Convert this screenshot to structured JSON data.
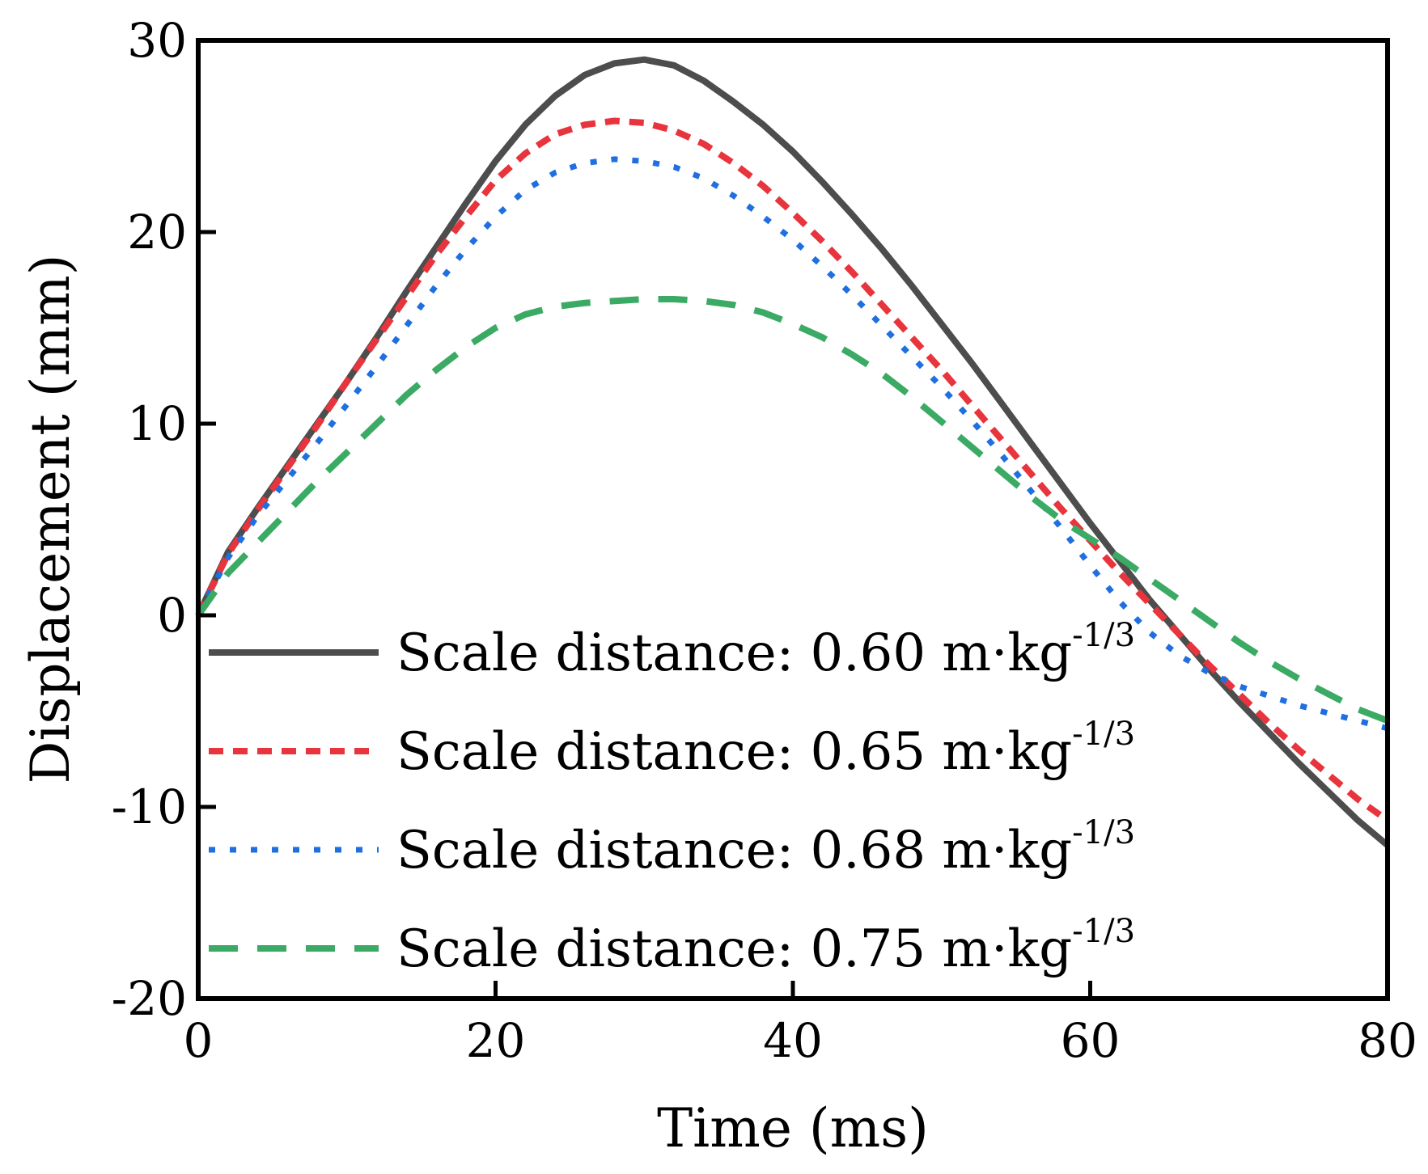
{
  "chart_data": {
    "type": "line",
    "title": "",
    "xlabel": "Time (ms)",
    "ylabel": "Displacement (mm)",
    "xlim": [
      0,
      80
    ],
    "ylim": [
      -20,
      30
    ],
    "xticks": [
      0,
      20,
      40,
      60,
      80
    ],
    "yticks": [
      -20,
      -10,
      0,
      10,
      20,
      30
    ],
    "xtick_labels": [
      "0",
      "20",
      "40",
      "60",
      "80"
    ],
    "ytick_labels": [
      "-20",
      "-10",
      "0",
      "10",
      "20",
      "30"
    ],
    "grid": false,
    "legend_position": "bottom-left",
    "series": [
      {
        "name": "Scale distance: 0.60 m·kg",
        "name_sup": "-1/3",
        "color": "#4d4d4d",
        "dash": "solid",
        "x": [
          0,
          2,
          4,
          6,
          8,
          10,
          12,
          14,
          16,
          18,
          20,
          22,
          24,
          26,
          28,
          30,
          32,
          34,
          36,
          38,
          40,
          42,
          44,
          46,
          48,
          50,
          52,
          54,
          56,
          58,
          60,
          62,
          64,
          66,
          68,
          70,
          72,
          74,
          76,
          78,
          80
        ],
        "y": [
          0,
          3.3,
          5.6,
          7.8,
          10.0,
          12.2,
          14.5,
          16.9,
          19.2,
          21.5,
          23.7,
          25.6,
          27.1,
          28.2,
          28.8,
          29.0,
          28.7,
          27.9,
          26.8,
          25.6,
          24.2,
          22.6,
          20.9,
          19.1,
          17.2,
          15.2,
          13.2,
          11.1,
          9.0,
          6.9,
          4.8,
          2.8,
          0.8,
          -1.0,
          -2.8,
          -4.5,
          -6.1,
          -7.7,
          -9.2,
          -10.7,
          -12.0
        ]
      },
      {
        "name": "Scale distance: 0.65 m·kg",
        "name_sup": "-1/3",
        "color": "#e8343c",
        "dash": "dashed-short",
        "x": [
          0,
          2,
          4,
          6,
          8,
          10,
          12,
          14,
          16,
          18,
          20,
          22,
          24,
          26,
          28,
          30,
          32,
          34,
          36,
          38,
          40,
          42,
          44,
          46,
          48,
          50,
          52,
          54,
          56,
          58,
          60,
          62,
          64,
          66,
          68,
          70,
          72,
          74,
          76,
          78,
          80
        ],
        "y": [
          0,
          3.2,
          5.5,
          7.7,
          9.9,
          12.2,
          14.4,
          16.6,
          18.8,
          20.8,
          22.7,
          24.1,
          25.1,
          25.6,
          25.8,
          25.7,
          25.3,
          24.6,
          23.6,
          22.4,
          21.0,
          19.5,
          17.9,
          16.2,
          14.5,
          12.8,
          11.0,
          9.2,
          7.4,
          5.6,
          3.9,
          2.2,
          0.6,
          -1.0,
          -2.6,
          -4.1,
          -5.6,
          -7.0,
          -8.3,
          -9.6,
          -10.7
        ]
      },
      {
        "name": "Scale distance: 0.68 m·kg",
        "name_sup": "-1/3",
        "color": "#1f6fe0",
        "dash": "dotted",
        "x": [
          0,
          2,
          4,
          6,
          8,
          10,
          12,
          14,
          16,
          18,
          20,
          22,
          24,
          26,
          28,
          30,
          32,
          34,
          36,
          38,
          40,
          42,
          44,
          46,
          48,
          50,
          52,
          54,
          56,
          58,
          60,
          62,
          64,
          66,
          68,
          70,
          72,
          74,
          76,
          78,
          80
        ],
        "y": [
          0,
          3.0,
          5.2,
          7.1,
          9.0,
          11.0,
          13.0,
          15.1,
          17.2,
          19.1,
          20.8,
          22.2,
          23.1,
          23.6,
          23.8,
          23.7,
          23.4,
          22.8,
          21.9,
          20.8,
          19.6,
          18.2,
          16.7,
          15.1,
          13.5,
          11.9,
          10.2,
          8.4,
          6.5,
          4.6,
          2.6,
          0.7,
          -0.9,
          -2.1,
          -3.0,
          -3.7,
          -4.2,
          -4.7,
          -5.1,
          -5.5,
          -5.9
        ]
      },
      {
        "name": "Scale distance: 0.75 m·kg",
        "name_sup": "-1/3",
        "color": "#3aaa64",
        "dash": "dashed-long",
        "x": [
          0,
          2,
          4,
          6,
          8,
          10,
          12,
          14,
          16,
          18,
          20,
          22,
          24,
          26,
          28,
          30,
          32,
          34,
          36,
          38,
          40,
          42,
          44,
          46,
          48,
          50,
          52,
          54,
          56,
          58,
          60,
          62,
          64,
          66,
          68,
          70,
          72,
          74,
          76,
          78,
          80
        ],
        "y": [
          0,
          2.2,
          3.8,
          5.4,
          7.0,
          8.5,
          10.0,
          11.5,
          12.8,
          14.0,
          15.0,
          15.7,
          16.1,
          16.3,
          16.4,
          16.5,
          16.5,
          16.4,
          16.2,
          15.8,
          15.2,
          14.5,
          13.6,
          12.6,
          11.4,
          10.1,
          8.8,
          7.5,
          6.2,
          5.0,
          4.0,
          3.0,
          1.9,
          0.8,
          -0.3,
          -1.4,
          -2.4,
          -3.3,
          -4.1,
          -4.9,
          -5.5
        ]
      }
    ]
  }
}
